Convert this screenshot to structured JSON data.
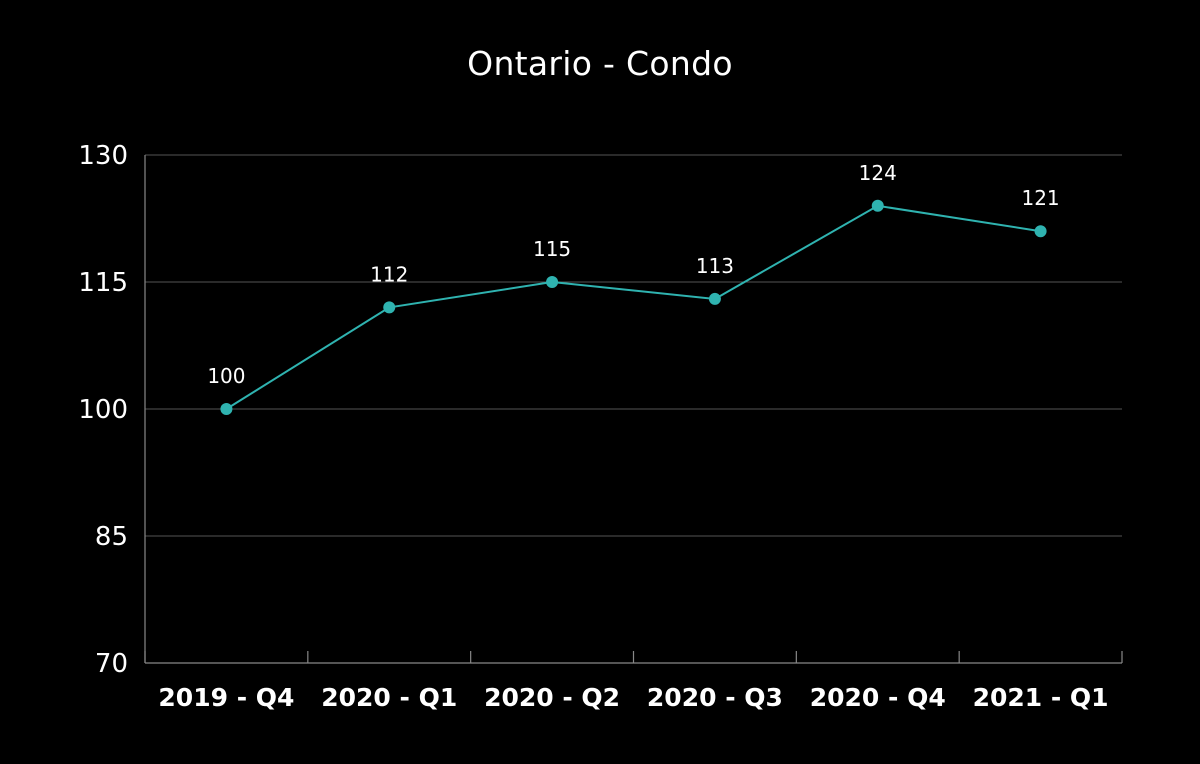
{
  "chart_data": {
    "type": "line",
    "title": "Ontario - Condo",
    "categories": [
      "2019 - Q4",
      "2020 - Q1",
      "2020 - Q2",
      "2020 - Q3",
      "2020 - Q4",
      "2021 - Q1"
    ],
    "series": [
      {
        "values": [
          100,
          112,
          115,
          113,
          124,
          121
        ]
      }
    ],
    "data_labels": [
      "100",
      "112",
      "115",
      "113",
      "124",
      "121"
    ],
    "yticks": [
      70,
      85,
      100,
      115,
      130
    ],
    "ylim": [
      70,
      130
    ],
    "xlabel": "",
    "ylabel": "",
    "grid": true,
    "legend": "none",
    "colors": {
      "background": "#000000",
      "line": "#2fb3b0",
      "grid": "#555555",
      "text": "#ffffff"
    }
  }
}
